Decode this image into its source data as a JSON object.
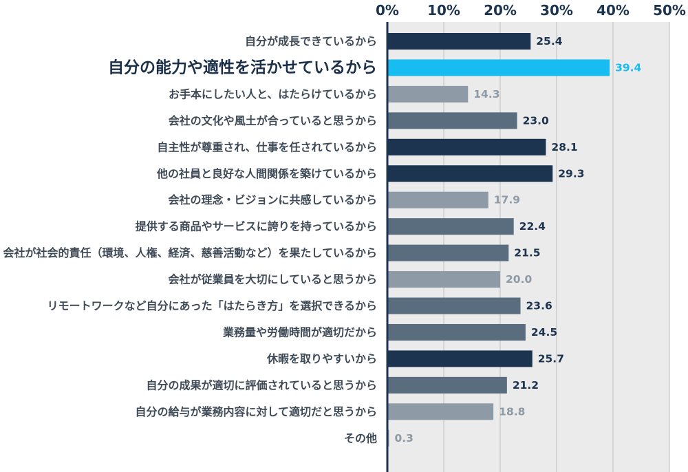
{
  "chart_data": {
    "type": "bar",
    "orientation": "horizontal",
    "xlim": [
      0,
      50
    ],
    "ticks": [
      "0%",
      "10%",
      "20%",
      "30%",
      "40%",
      "50%"
    ],
    "tick_values": [
      0,
      10,
      20,
      30,
      40,
      50
    ],
    "categories": [
      "自分が成長できているから",
      "自分の能力や適性を活かせているから",
      "お手本にしたい人と、はたらけているから",
      "会社の文化や風土が合っていると思うから",
      "自主性が尊重され、仕事を任されているから",
      "他の社員と良好な人間関係を築けているから",
      "会社の理念・ビジョンに共感しているから",
      "提供する商品やサービスに誇りを持っているから",
      "会社が社会的責任（環境、人権、経済、慈善活動など）を果たしているから",
      "会社が従業員を大切にしていると思うから",
      "リモートワークなど自分にあった「はたらき方」を選択できるから",
      "業務量や労働時間が適切だから",
      "休暇を取りやすいから",
      "自分の成果が適切に評価されていると思うから",
      "自分の給与が業務内容に対して適切だと思うから",
      "その他"
    ],
    "values": [
      25.4,
      39.4,
      14.3,
      23.0,
      28.1,
      29.3,
      17.9,
      22.4,
      21.5,
      20.0,
      23.6,
      24.5,
      25.7,
      21.2,
      18.8,
      0.3
    ],
    "value_labels": [
      "25.4",
      "39.4",
      "14.3",
      "23.0",
      "28.1",
      "29.3",
      "17.9",
      "22.4",
      "21.5",
      "20.0",
      "23.6",
      "24.5",
      "25.7",
      "21.2",
      "18.8",
      "0.3"
    ],
    "highlight_index": 1,
    "grid": true,
    "colors": {
      "dark": "#1d3450",
      "mid": "#596d7f",
      "light": "#8e9aa5",
      "highlight": "#17bdf0",
      "plot_bg": "#ebebeb",
      "grid": "#bcbcbc",
      "axis": "#1d3450"
    },
    "bar_tones": [
      "dark",
      "highlight",
      "light",
      "mid",
      "dark",
      "dark",
      "light",
      "mid",
      "mid",
      "light",
      "mid",
      "mid",
      "dark",
      "mid",
      "light",
      "light"
    ],
    "label_tones": [
      "dark",
      "highlight",
      "light",
      "dark",
      "dark",
      "dark",
      "light",
      "dark",
      "dark",
      "light",
      "dark",
      "dark",
      "dark",
      "dark",
      "light",
      "light"
    ]
  }
}
